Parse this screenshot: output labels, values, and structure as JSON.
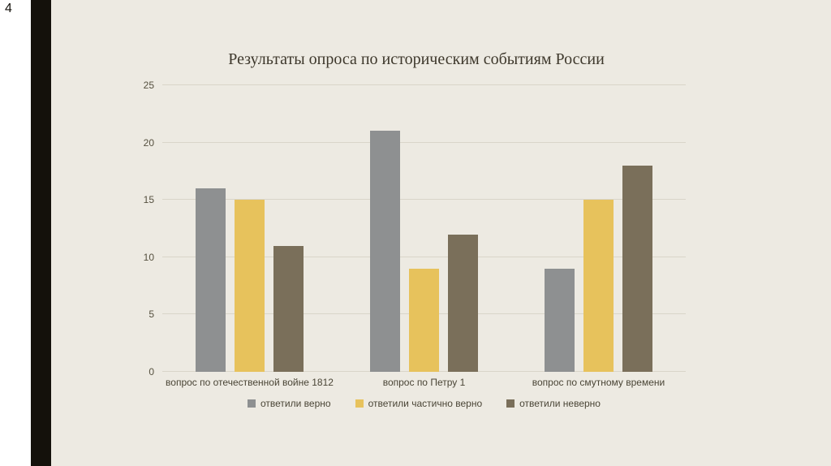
{
  "slide": {
    "number": "4"
  },
  "chart_data": {
    "type": "bar",
    "title": "Результаты опроса по историческим событиям России",
    "categories": [
      "вопрос по отечественной войне 1812",
      "вопрос по Петру 1",
      "вопрос по смутному времени"
    ],
    "series": [
      {
        "name": "ответили верно",
        "color": "#8e9091",
        "values": [
          16,
          21,
          9
        ]
      },
      {
        "name": "ответили частично верно",
        "color": "#e7c25c",
        "values": [
          15,
          9,
          15
        ]
      },
      {
        "name": "ответили неверно",
        "color": "#7a6f5a",
        "values": [
          11,
          12,
          18
        ]
      }
    ],
    "xlabel": "",
    "ylabel": "",
    "ylim": [
      0,
      25
    ],
    "yticks": [
      0,
      5,
      10,
      15,
      20,
      25
    ],
    "grid": true,
    "legend_position": "bottom"
  },
  "colors": {
    "background": "#edeae2",
    "accent_bar": "#14110b",
    "gridline": "#d9d5c9",
    "text": "#4a4536"
  }
}
